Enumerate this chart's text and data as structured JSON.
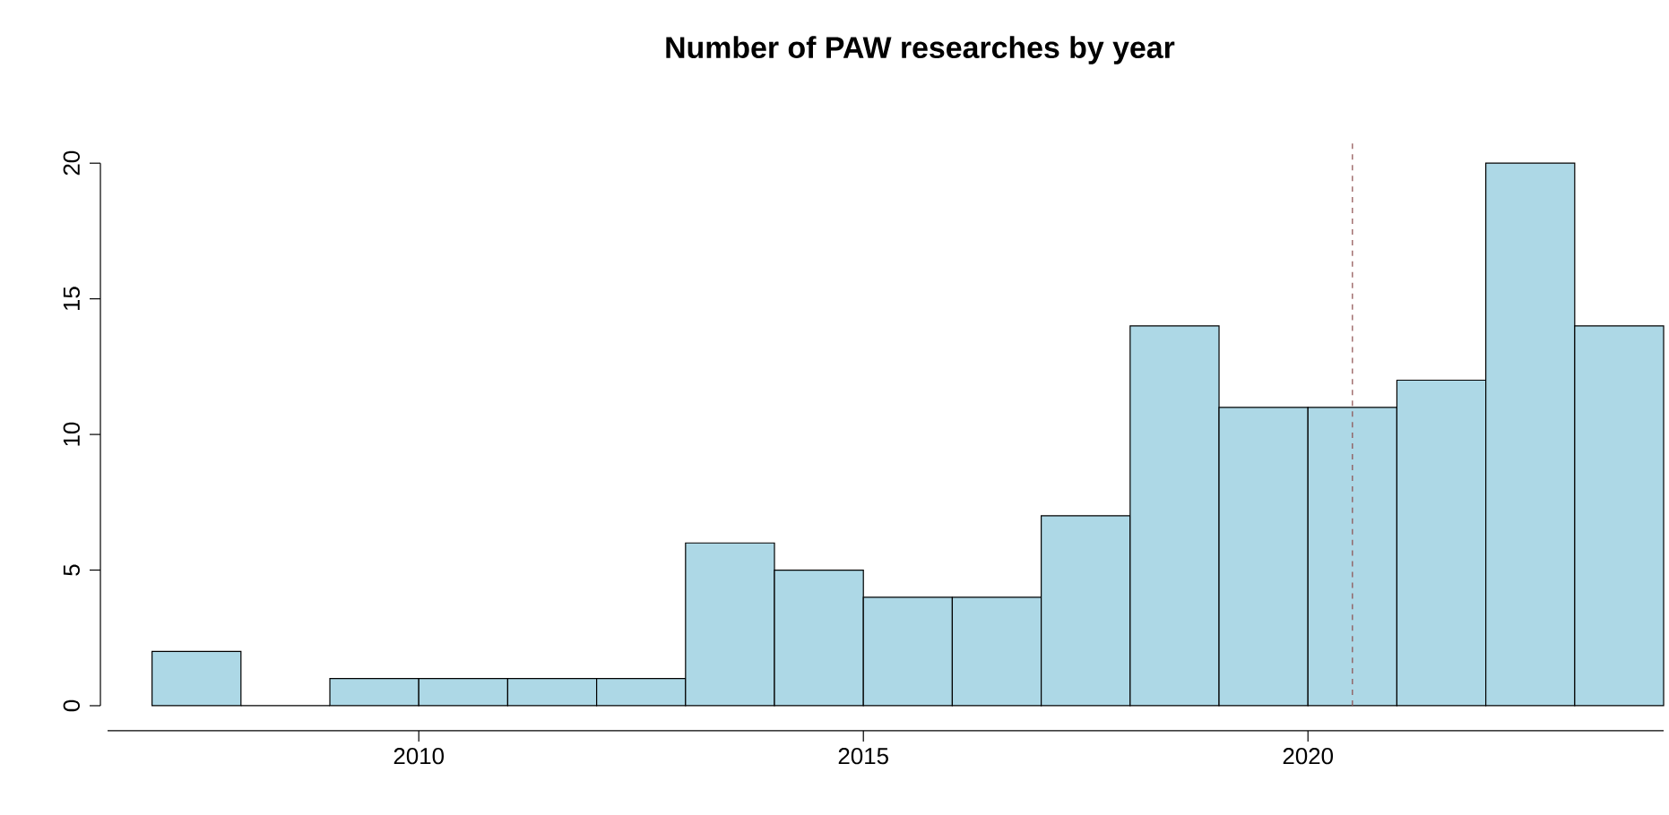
{
  "chart_data": {
    "type": "histogram",
    "title": "Number of PAW researches by year",
    "bins": [
      2007,
      2008,
      2009,
      2010,
      2011,
      2012,
      2013,
      2014,
      2015,
      2016,
      2017,
      2018,
      2019,
      2020,
      2021,
      2022,
      2023,
      2024
    ],
    "values": [
      2,
      0,
      1,
      1,
      1,
      1,
      6,
      5,
      4,
      4,
      7,
      14,
      11,
      11,
      12,
      20,
      14
    ],
    "color": "#add8e6",
    "xlim": [
      2006.5,
      2024
    ],
    "ylim": [
      0,
      20.8
    ],
    "xticks": [
      2010,
      2015,
      2020
    ],
    "yticks": [
      0,
      5,
      10,
      15,
      20
    ],
    "ref_lines": [
      {
        "axis": "x",
        "value": 2020.5,
        "color": "#8b4c4c",
        "line_style": "dashed"
      }
    ]
  }
}
